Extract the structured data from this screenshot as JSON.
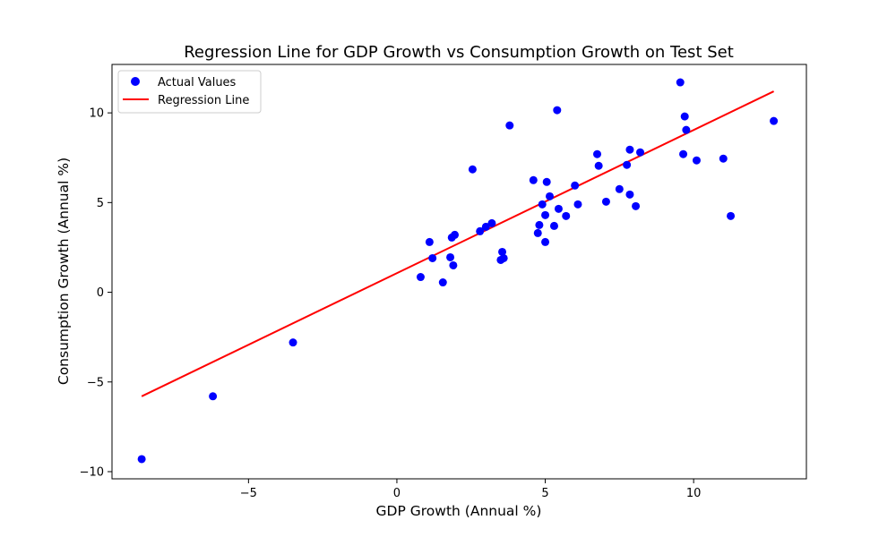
{
  "chart_data": {
    "type": "scatter",
    "title": "Regression Line for GDP Growth vs Consumption Growth on Test Set",
    "xlabel": "GDP Growth (Annual %)",
    "ylabel": "Consumption Growth (Annual %)",
    "xlim": [
      -9.6,
      13.8
    ],
    "ylim": [
      -10.4,
      12.7
    ],
    "xticks": [
      -5,
      0,
      5,
      10
    ],
    "yticks": [
      -10,
      -5,
      0,
      5,
      10
    ],
    "xtick_labels": [
      "−5",
      "0",
      "5",
      "10"
    ],
    "ytick_labels": [
      "−10",
      "−5",
      "0",
      "5",
      "10"
    ],
    "grid": false,
    "legend_position": "top-left",
    "series": [
      {
        "name": "Actual Values",
        "kind": "scatter",
        "color": "#0000ff",
        "points": [
          [
            -8.6,
            -9.3
          ],
          [
            -6.2,
            -5.8
          ],
          [
            -3.5,
            -2.8
          ],
          [
            0.8,
            0.85
          ],
          [
            1.1,
            2.8
          ],
          [
            1.2,
            1.9
          ],
          [
            1.55,
            0.55
          ],
          [
            1.8,
            1.95
          ],
          [
            1.85,
            3.05
          ],
          [
            1.9,
            1.5
          ],
          [
            1.95,
            3.2
          ],
          [
            2.55,
            6.85
          ],
          [
            2.8,
            3.4
          ],
          [
            3.0,
            3.65
          ],
          [
            3.2,
            3.85
          ],
          [
            3.5,
            1.8
          ],
          [
            3.55,
            2.25
          ],
          [
            3.6,
            1.9
          ],
          [
            3.8,
            9.3
          ],
          [
            4.6,
            6.25
          ],
          [
            4.75,
            3.3
          ],
          [
            4.8,
            3.75
          ],
          [
            4.9,
            4.9
          ],
          [
            5.0,
            2.8
          ],
          [
            5.0,
            4.3
          ],
          [
            5.05,
            6.15
          ],
          [
            5.15,
            5.35
          ],
          [
            5.3,
            3.7
          ],
          [
            5.4,
            10.15
          ],
          [
            5.45,
            4.65
          ],
          [
            5.7,
            4.25
          ],
          [
            6.0,
            5.95
          ],
          [
            6.1,
            4.9
          ],
          [
            6.75,
            7.7
          ],
          [
            6.8,
            7.05
          ],
          [
            7.05,
            5.05
          ],
          [
            7.5,
            5.75
          ],
          [
            7.75,
            7.1
          ],
          [
            7.85,
            7.95
          ],
          [
            7.85,
            5.45
          ],
          [
            8.05,
            4.8
          ],
          [
            8.2,
            7.8
          ],
          [
            9.55,
            11.7
          ],
          [
            9.65,
            7.7
          ],
          [
            9.7,
            9.8
          ],
          [
            9.75,
            9.05
          ],
          [
            10.1,
            7.35
          ],
          [
            11.0,
            7.45
          ],
          [
            11.25,
            4.25
          ],
          [
            12.7,
            9.55
          ]
        ]
      },
      {
        "name": "Regression Line",
        "kind": "line",
        "color": "#ff0000",
        "x": [
          -8.6,
          12.7
        ],
        "y": [
          -5.8,
          11.2
        ]
      }
    ]
  }
}
